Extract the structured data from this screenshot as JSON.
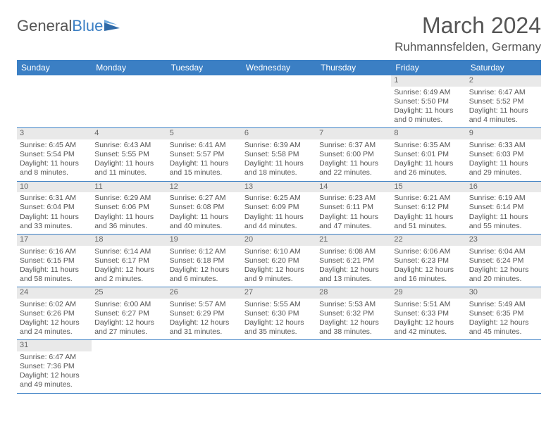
{
  "logo": {
    "text1": "General",
    "text2": "Blue"
  },
  "header": {
    "month": "March 2024",
    "location": "Ruhmannsfelden, Germany"
  },
  "styling": {
    "header_bg": "#3b7fc4",
    "header_fg": "#ffffff",
    "daynum_bg": "#e9e9e9",
    "border_color": "#3b7fc4",
    "body_font_size": 10.5,
    "title_font_size": 32
  },
  "weekdays": [
    "Sunday",
    "Monday",
    "Tuesday",
    "Wednesday",
    "Thursday",
    "Friday",
    "Saturday"
  ],
  "weeks": [
    [
      null,
      null,
      null,
      null,
      null,
      {
        "n": "1",
        "sr": "Sunrise: 6:49 AM",
        "ss": "Sunset: 5:50 PM",
        "d1": "Daylight: 11 hours",
        "d2": "and 0 minutes."
      },
      {
        "n": "2",
        "sr": "Sunrise: 6:47 AM",
        "ss": "Sunset: 5:52 PM",
        "d1": "Daylight: 11 hours",
        "d2": "and 4 minutes."
      }
    ],
    [
      {
        "n": "3",
        "sr": "Sunrise: 6:45 AM",
        "ss": "Sunset: 5:54 PM",
        "d1": "Daylight: 11 hours",
        "d2": "and 8 minutes."
      },
      {
        "n": "4",
        "sr": "Sunrise: 6:43 AM",
        "ss": "Sunset: 5:55 PM",
        "d1": "Daylight: 11 hours",
        "d2": "and 11 minutes."
      },
      {
        "n": "5",
        "sr": "Sunrise: 6:41 AM",
        "ss": "Sunset: 5:57 PM",
        "d1": "Daylight: 11 hours",
        "d2": "and 15 minutes."
      },
      {
        "n": "6",
        "sr": "Sunrise: 6:39 AM",
        "ss": "Sunset: 5:58 PM",
        "d1": "Daylight: 11 hours",
        "d2": "and 18 minutes."
      },
      {
        "n": "7",
        "sr": "Sunrise: 6:37 AM",
        "ss": "Sunset: 6:00 PM",
        "d1": "Daylight: 11 hours",
        "d2": "and 22 minutes."
      },
      {
        "n": "8",
        "sr": "Sunrise: 6:35 AM",
        "ss": "Sunset: 6:01 PM",
        "d1": "Daylight: 11 hours",
        "d2": "and 26 minutes."
      },
      {
        "n": "9",
        "sr": "Sunrise: 6:33 AM",
        "ss": "Sunset: 6:03 PM",
        "d1": "Daylight: 11 hours",
        "d2": "and 29 minutes."
      }
    ],
    [
      {
        "n": "10",
        "sr": "Sunrise: 6:31 AM",
        "ss": "Sunset: 6:04 PM",
        "d1": "Daylight: 11 hours",
        "d2": "and 33 minutes."
      },
      {
        "n": "11",
        "sr": "Sunrise: 6:29 AM",
        "ss": "Sunset: 6:06 PM",
        "d1": "Daylight: 11 hours",
        "d2": "and 36 minutes."
      },
      {
        "n": "12",
        "sr": "Sunrise: 6:27 AM",
        "ss": "Sunset: 6:08 PM",
        "d1": "Daylight: 11 hours",
        "d2": "and 40 minutes."
      },
      {
        "n": "13",
        "sr": "Sunrise: 6:25 AM",
        "ss": "Sunset: 6:09 PM",
        "d1": "Daylight: 11 hours",
        "d2": "and 44 minutes."
      },
      {
        "n": "14",
        "sr": "Sunrise: 6:23 AM",
        "ss": "Sunset: 6:11 PM",
        "d1": "Daylight: 11 hours",
        "d2": "and 47 minutes."
      },
      {
        "n": "15",
        "sr": "Sunrise: 6:21 AM",
        "ss": "Sunset: 6:12 PM",
        "d1": "Daylight: 11 hours",
        "d2": "and 51 minutes."
      },
      {
        "n": "16",
        "sr": "Sunrise: 6:19 AM",
        "ss": "Sunset: 6:14 PM",
        "d1": "Daylight: 11 hours",
        "d2": "and 55 minutes."
      }
    ],
    [
      {
        "n": "17",
        "sr": "Sunrise: 6:16 AM",
        "ss": "Sunset: 6:15 PM",
        "d1": "Daylight: 11 hours",
        "d2": "and 58 minutes."
      },
      {
        "n": "18",
        "sr": "Sunrise: 6:14 AM",
        "ss": "Sunset: 6:17 PM",
        "d1": "Daylight: 12 hours",
        "d2": "and 2 minutes."
      },
      {
        "n": "19",
        "sr": "Sunrise: 6:12 AM",
        "ss": "Sunset: 6:18 PM",
        "d1": "Daylight: 12 hours",
        "d2": "and 6 minutes."
      },
      {
        "n": "20",
        "sr": "Sunrise: 6:10 AM",
        "ss": "Sunset: 6:20 PM",
        "d1": "Daylight: 12 hours",
        "d2": "and 9 minutes."
      },
      {
        "n": "21",
        "sr": "Sunrise: 6:08 AM",
        "ss": "Sunset: 6:21 PM",
        "d1": "Daylight: 12 hours",
        "d2": "and 13 minutes."
      },
      {
        "n": "22",
        "sr": "Sunrise: 6:06 AM",
        "ss": "Sunset: 6:23 PM",
        "d1": "Daylight: 12 hours",
        "d2": "and 16 minutes."
      },
      {
        "n": "23",
        "sr": "Sunrise: 6:04 AM",
        "ss": "Sunset: 6:24 PM",
        "d1": "Daylight: 12 hours",
        "d2": "and 20 minutes."
      }
    ],
    [
      {
        "n": "24",
        "sr": "Sunrise: 6:02 AM",
        "ss": "Sunset: 6:26 PM",
        "d1": "Daylight: 12 hours",
        "d2": "and 24 minutes."
      },
      {
        "n": "25",
        "sr": "Sunrise: 6:00 AM",
        "ss": "Sunset: 6:27 PM",
        "d1": "Daylight: 12 hours",
        "d2": "and 27 minutes."
      },
      {
        "n": "26",
        "sr": "Sunrise: 5:57 AM",
        "ss": "Sunset: 6:29 PM",
        "d1": "Daylight: 12 hours",
        "d2": "and 31 minutes."
      },
      {
        "n": "27",
        "sr": "Sunrise: 5:55 AM",
        "ss": "Sunset: 6:30 PM",
        "d1": "Daylight: 12 hours",
        "d2": "and 35 minutes."
      },
      {
        "n": "28",
        "sr": "Sunrise: 5:53 AM",
        "ss": "Sunset: 6:32 PM",
        "d1": "Daylight: 12 hours",
        "d2": "and 38 minutes."
      },
      {
        "n": "29",
        "sr": "Sunrise: 5:51 AM",
        "ss": "Sunset: 6:33 PM",
        "d1": "Daylight: 12 hours",
        "d2": "and 42 minutes."
      },
      {
        "n": "30",
        "sr": "Sunrise: 5:49 AM",
        "ss": "Sunset: 6:35 PM",
        "d1": "Daylight: 12 hours",
        "d2": "and 45 minutes."
      }
    ],
    [
      {
        "n": "31",
        "sr": "Sunrise: 6:47 AM",
        "ss": "Sunset: 7:36 PM",
        "d1": "Daylight: 12 hours",
        "d2": "and 49 minutes."
      },
      null,
      null,
      null,
      null,
      null,
      null
    ]
  ]
}
